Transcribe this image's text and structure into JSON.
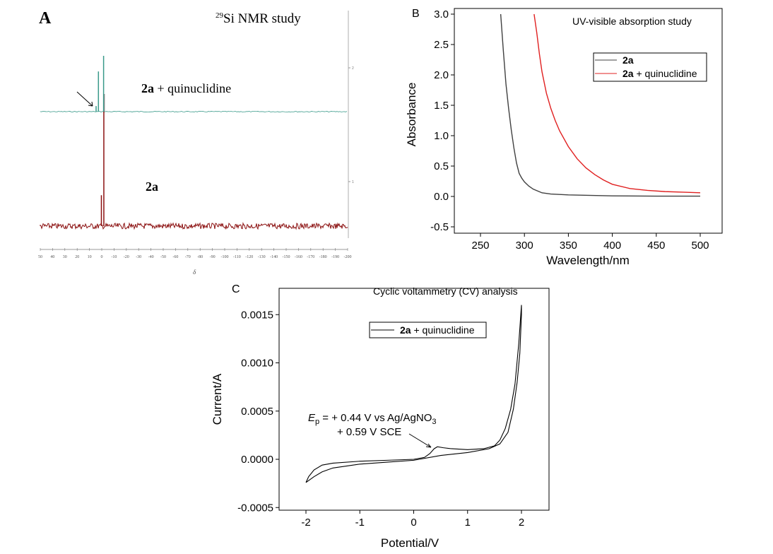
{
  "chart_data": [
    {
      "panel": "A",
      "type": "line",
      "title_sup": "29",
      "title": "Si NMR study",
      "xlabel": "δ",
      "xlim": [
        50,
        -200
      ],
      "xticks": [
        "50",
        "40",
        "30",
        "20",
        "10",
        "0",
        "-10",
        "-20",
        "-30",
        "-40",
        "-50",
        "-60",
        "-70",
        "-80",
        "-90",
        "-100",
        "-110",
        "-120",
        "-130",
        "-140",
        "-150",
        "-160",
        "-170",
        "-180",
        "-190",
        "-200"
      ],
      "right_ticks": [
        "2",
        "1"
      ],
      "series": [
        {
          "name": "2a + quinuclidine",
          "name_bold": "2a",
          "name_rest": " + quinuclidine",
          "color": "#3a9a8a",
          "peaks": [
            {
              "x": -1.5,
              "h": 1.0
            },
            {
              "x": 2.7,
              "h": 0.72
            },
            {
              "x": 4.6,
              "h": 0.1
            }
          ]
        },
        {
          "name": "2a",
          "color": "#8b1010",
          "peaks": [
            {
              "x": -1.7,
              "h": 1.0
            },
            {
              "x": 0.3,
              "h": 0.27
            }
          ]
        }
      ],
      "arrow_annotation": true
    },
    {
      "panel": "B",
      "type": "line",
      "title": "UV-visible absorption study",
      "xlabel": "Wavelength/nm",
      "ylabel": "Absorbance",
      "xlim": [
        220,
        525
      ],
      "ylim": [
        -0.5,
        3.0
      ],
      "xticks": [
        250,
        300,
        350,
        400,
        450,
        500
      ],
      "yticks": [
        "-0.5",
        "0.0",
        "0.5",
        "1.0",
        "1.5",
        "2.0",
        "2.5",
        "3.0"
      ],
      "legend_position": "top-right",
      "series": [
        {
          "name": "2a",
          "name_bold": "2a",
          "name_rest": "",
          "color": "#404040",
          "x": [
            273,
            276,
            279,
            282,
            285,
            288,
            291,
            294,
            297,
            300,
            305,
            310,
            315,
            320,
            330,
            350,
            400,
            450,
            500
          ],
          "y": [
            3.0,
            2.4,
            1.85,
            1.45,
            1.1,
            0.8,
            0.55,
            0.38,
            0.3,
            0.24,
            0.17,
            0.12,
            0.09,
            0.06,
            0.04,
            0.025,
            0.01,
            0.005,
            0.005
          ]
        },
        {
          "name": "2a + quinuclidine",
          "name_bold": "2a",
          "name_rest": " + quinuclidine",
          "color": "#e02020",
          "x": [
            311,
            314,
            317,
            320,
            325,
            330,
            335,
            340,
            350,
            360,
            370,
            380,
            390,
            400,
            420,
            440,
            460,
            480,
            500
          ],
          "y": [
            3.0,
            2.7,
            2.35,
            2.05,
            1.7,
            1.45,
            1.25,
            1.08,
            0.82,
            0.62,
            0.47,
            0.36,
            0.27,
            0.2,
            0.13,
            0.1,
            0.08,
            0.07,
            0.06
          ]
        }
      ]
    },
    {
      "panel": "C",
      "type": "line",
      "title": "Cyclic voltammetry (CV) analysis",
      "xlabel": "Potential/V",
      "ylabel": "Current/A",
      "xlim": [
        -2.5,
        2.5
      ],
      "ylim": [
        -0.0005,
        0.0017
      ],
      "xticks": [
        "-2",
        "-1",
        "0",
        "1",
        "2"
      ],
      "yticks": [
        "-0.0005",
        "0.0000",
        "0.0005",
        "0.0010",
        "0.0015"
      ],
      "legend_position": "top-center",
      "annotation": {
        "ep_label": "E",
        "ep_sub": "p",
        "line1": " = + 0.44 V vs Ag/AgNO",
        "line1_sub": "3",
        "line2": "+ 0.59 V SCE"
      },
      "series": [
        {
          "name": "2a + quinuclidine",
          "name_bold": "2a",
          "name_rest": " + quinuclidine",
          "color": "#000000",
          "x": [
            -2.0,
            -1.95,
            -1.85,
            -1.7,
            -1.5,
            -1.0,
            -0.5,
            0.0,
            0.2,
            0.3,
            0.38,
            0.44,
            0.55,
            0.7,
            1.0,
            1.3,
            1.5,
            1.6,
            1.7,
            1.8,
            1.88,
            1.95,
            2.0,
            2.0,
            1.97,
            1.92,
            1.85,
            1.75,
            1.6,
            1.4,
            1.0,
            0.5,
            0.0,
            -0.5,
            -1.0,
            -1.5,
            -1.7,
            -1.85,
            -1.95,
            -2.0
          ],
          "y": [
            -0.00024,
            -0.00018,
            -0.00011,
            -6e-05,
            -4e-05,
            -2e-05,
            -1e-05,
            0.0,
            2e-05,
            6e-05,
            0.00011,
            0.00013,
            0.00012,
            0.00011,
            0.0001,
            0.00011,
            0.00014,
            0.0002,
            0.00032,
            0.00052,
            0.00078,
            0.0012,
            0.0016,
            0.0015,
            0.0011,
            0.0008,
            0.00052,
            0.00028,
            0.00016,
            0.00011,
            7e-05,
            4e-05,
            -1e-05,
            -3e-05,
            -5e-05,
            -9e-05,
            -0.00013,
            -0.00018,
            -0.00022,
            -0.00024
          ]
        }
      ]
    }
  ]
}
